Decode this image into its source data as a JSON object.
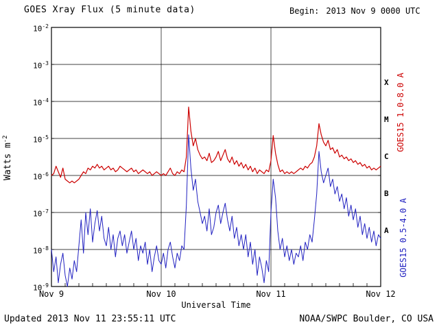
{
  "header": {
    "title": "GOES Xray Flux (5 minute data)",
    "begin_label": "Begin:",
    "begin_value": "2013 Nov 9 0000 UTC"
  },
  "axes": {
    "ylabel_base": "Watts m",
    "ylabel_exp": "-2",
    "xlabel": "Universal Time"
  },
  "side_labels": {
    "red": "GOES15 1.0-8.0 A",
    "blue": "GOES15 0.5-4.0 A"
  },
  "footer": {
    "updated": "Updated 2013 Nov 11 23:55:11 UTC",
    "source": "NOAA/SWPC Boulder, CO USA"
  },
  "chart_data": {
    "type": "line",
    "title": "GOES Xray Flux (5 minute data)",
    "xlabel": "Universal Time",
    "ylabel": "Watts m^-2",
    "x_start_hours": 0,
    "x_end_hours": 72,
    "dt_hours": 0.5,
    "ylim_exp": [
      -9,
      -2
    ],
    "grid": true,
    "ytick_exponents": [
      -2,
      -3,
      -4,
      -5,
      -6,
      -7,
      -8,
      -9
    ],
    "xticks": [
      {
        "hour": 0,
        "label": "Nov 9"
      },
      {
        "hour": 24,
        "label": "Nov 10"
      },
      {
        "hour": 48,
        "label": "Nov 11"
      },
      {
        "hour": 72,
        "label": "Nov 12"
      }
    ],
    "day_gridline_hours": [
      24,
      48
    ],
    "minor_tick_hours": 3,
    "flux_classes": [
      {
        "label": "X",
        "exp": -3.5
      },
      {
        "label": "M",
        "exp": -4.5
      },
      {
        "label": "C",
        "exp": -5.5
      },
      {
        "label": "B",
        "exp": -6.5
      },
      {
        "label": "A",
        "exp": -7.5
      }
    ],
    "series": [
      {
        "name": "GOES15 1.0-8.0 A",
        "color": "#cc0000",
        "log10_values": [
          -6.0,
          -5.95,
          -5.75,
          -5.9,
          -6.05,
          -5.8,
          -6.1,
          -6.15,
          -6.2,
          -6.15,
          -6.2,
          -6.15,
          -6.1,
          -6.0,
          -5.9,
          -5.95,
          -5.8,
          -5.85,
          -5.75,
          -5.8,
          -5.7,
          -5.8,
          -5.75,
          -5.85,
          -5.8,
          -5.75,
          -5.85,
          -5.8,
          -5.9,
          -5.85,
          -5.75,
          -5.8,
          -5.85,
          -5.9,
          -5.85,
          -5.8,
          -5.9,
          -5.85,
          -5.95,
          -5.9,
          -5.85,
          -5.9,
          -5.95,
          -5.9,
          -6.0,
          -5.95,
          -5.9,
          -5.95,
          -6.0,
          -5.95,
          -6.0,
          -5.9,
          -5.8,
          -5.95,
          -6.0,
          -5.9,
          -5.95,
          -5.85,
          -5.9,
          -5.5,
          -4.15,
          -4.8,
          -5.2,
          -5.0,
          -5.3,
          -5.45,
          -5.55,
          -5.5,
          -5.6,
          -5.4,
          -5.65,
          -5.6,
          -5.5,
          -5.35,
          -5.6,
          -5.45,
          -5.3,
          -5.55,
          -5.65,
          -5.5,
          -5.7,
          -5.6,
          -5.75,
          -5.65,
          -5.8,
          -5.7,
          -5.85,
          -5.75,
          -5.9,
          -5.8,
          -5.95,
          -5.85,
          -5.9,
          -5.95,
          -5.85,
          -5.9,
          -5.6,
          -4.92,
          -5.4,
          -5.7,
          -5.9,
          -5.85,
          -5.95,
          -5.9,
          -5.95,
          -5.9,
          -5.95,
          -5.9,
          -5.85,
          -5.8,
          -5.85,
          -5.75,
          -5.8,
          -5.7,
          -5.65,
          -5.5,
          -5.2,
          -4.6,
          -4.9,
          -5.1,
          -5.2,
          -5.05,
          -5.3,
          -5.25,
          -5.4,
          -5.3,
          -5.5,
          -5.45,
          -5.55,
          -5.5,
          -5.6,
          -5.55,
          -5.65,
          -5.6,
          -5.7,
          -5.65,
          -5.75,
          -5.7,
          -5.8,
          -5.75,
          -5.85,
          -5.8,
          -5.85,
          -5.8,
          -5.75
        ]
      },
      {
        "name": "GOES15 0.5-4.0 A",
        "color": "#2020c0",
        "log10_values": [
          -8.0,
          -8.6,
          -8.2,
          -8.9,
          -8.4,
          -8.1,
          -8.7,
          -9.0,
          -8.5,
          -8.8,
          -8.3,
          -8.6,
          -7.9,
          -7.2,
          -8.1,
          -7.0,
          -7.6,
          -6.9,
          -7.8,
          -7.3,
          -6.95,
          -7.5,
          -7.1,
          -7.7,
          -7.9,
          -7.4,
          -8.0,
          -7.6,
          -8.2,
          -7.7,
          -7.5,
          -7.9,
          -7.6,
          -8.1,
          -7.8,
          -7.5,
          -8.0,
          -7.7,
          -8.3,
          -7.9,
          -8.1,
          -7.8,
          -8.4,
          -8.0,
          -8.6,
          -8.2,
          -7.9,
          -8.3,
          -8.4,
          -8.1,
          -8.5,
          -8.0,
          -7.8,
          -8.2,
          -8.5,
          -8.1,
          -8.3,
          -7.9,
          -8.0,
          -6.8,
          -4.9,
          -5.8,
          -6.4,
          -6.1,
          -6.7,
          -7.0,
          -7.3,
          -7.1,
          -7.5,
          -6.9,
          -7.6,
          -7.4,
          -7.0,
          -6.8,
          -7.3,
          -7.0,
          -6.75,
          -7.2,
          -7.5,
          -7.1,
          -7.7,
          -7.4,
          -7.9,
          -7.6,
          -8.0,
          -7.6,
          -8.2,
          -7.8,
          -8.4,
          -8.0,
          -8.7,
          -8.2,
          -8.5,
          -8.9,
          -8.3,
          -8.6,
          -7.0,
          -6.1,
          -6.6,
          -7.5,
          -8.0,
          -7.7,
          -8.2,
          -7.9,
          -8.3,
          -8.0,
          -8.4,
          -8.1,
          -8.2,
          -7.9,
          -8.3,
          -7.8,
          -8.0,
          -7.6,
          -7.8,
          -7.2,
          -6.5,
          -5.35,
          -5.9,
          -6.2,
          -6.0,
          -5.8,
          -6.3,
          -6.1,
          -6.5,
          -6.3,
          -6.7,
          -6.5,
          -6.9,
          -6.6,
          -7.1,
          -6.8,
          -7.2,
          -6.9,
          -7.4,
          -7.1,
          -7.6,
          -7.3,
          -7.7,
          -7.4,
          -7.8,
          -7.5,
          -7.9,
          -7.6,
          -7.7
        ]
      }
    ]
  }
}
